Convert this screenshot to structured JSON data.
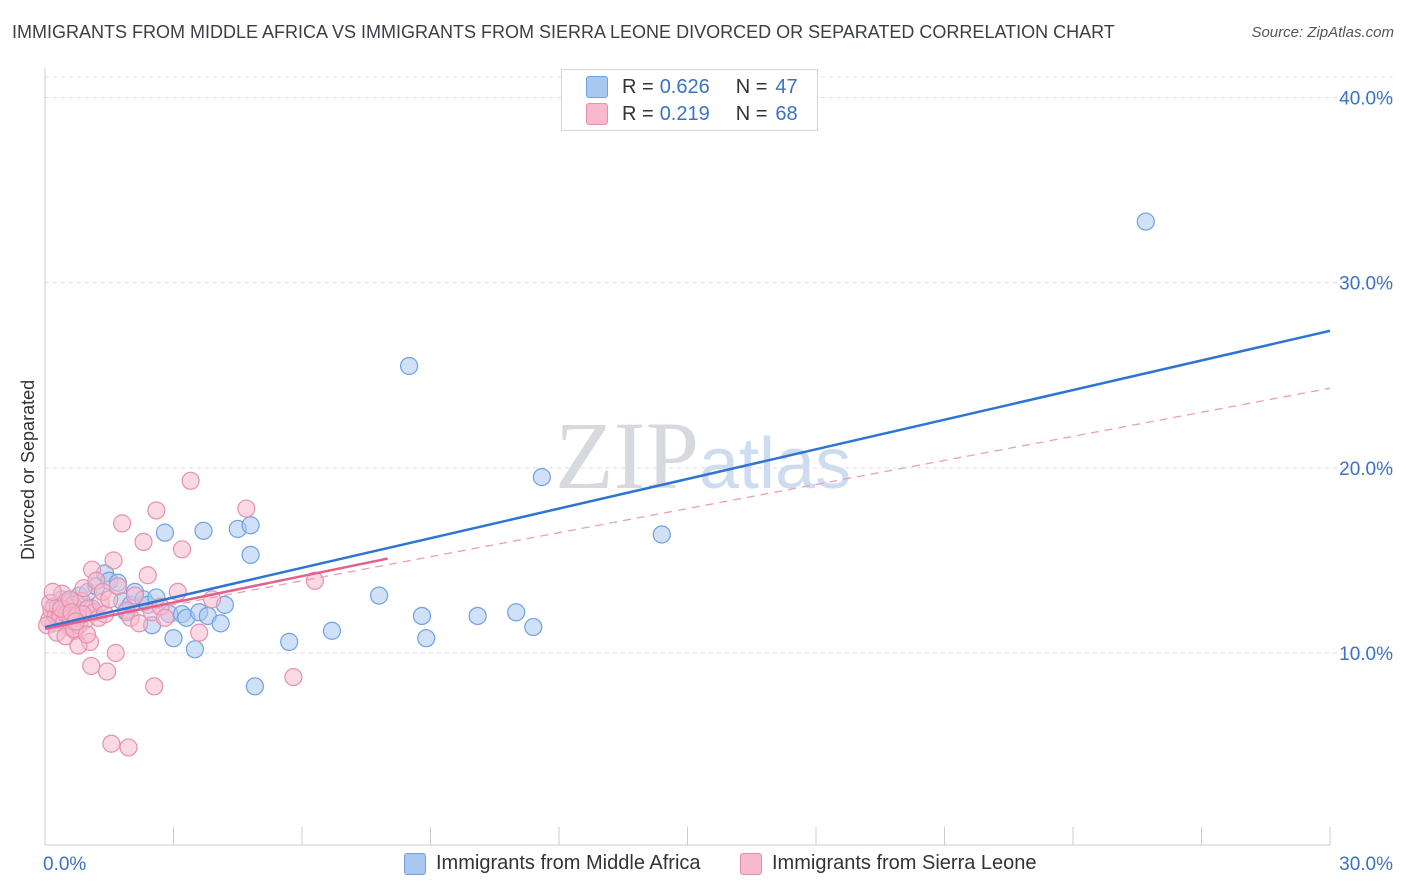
{
  "title": "IMMIGRANTS FROM MIDDLE AFRICA VS IMMIGRANTS FROM SIERRA LEONE DIVORCED OR SEPARATED CORRELATION CHART",
  "source": "Source: ZipAtlas.com",
  "watermark": {
    "zip": "ZIP",
    "atlas": "atlas"
  },
  "legend": {
    "r_label": "R =",
    "n_label": "N =",
    "rows": [
      {
        "r": "0.626",
        "n": "47",
        "color": "#a9c8f0"
      },
      {
        "r": "0.219",
        "n": "68",
        "color": "#f6b9cd"
      }
    ]
  },
  "chart_data": {
    "type": "scatter",
    "title": "IMMIGRANTS FROM MIDDLE AFRICA VS IMMIGRANTS FROM SIERRA LEONE DIVORCED OR SEPARATED CORRELATION CHART",
    "xlabel": "",
    "ylabel": "Divorced or Separated",
    "xlim": [
      0,
      30
    ],
    "ylim": [
      0,
      42
    ],
    "x_tick_labels": [
      {
        "value": 0,
        "label": "0.0%"
      },
      {
        "value": 30,
        "label": "30.0%"
      }
    ],
    "y_tick_labels": [
      {
        "value": 10,
        "label": "10.0%"
      },
      {
        "value": 20,
        "label": "20.0%"
      },
      {
        "value": 30,
        "label": "30.0%"
      },
      {
        "value": 40,
        "label": "40.0%"
      }
    ],
    "grid": "horizontal dashed",
    "legend_position": "top-center",
    "series": [
      {
        "name": "Immigrants from Middle Africa",
        "color": "#6fa1e4",
        "fill": "#a9c8f0",
        "trend": {
          "x": [
            0,
            30
          ],
          "y": [
            11.4,
            27.4
          ],
          "style": "solid",
          "color": "#2e74d2"
        },
        "points": [
          [
            0.2,
            12.5
          ],
          [
            0.4,
            12.9
          ],
          [
            0.5,
            12.2
          ],
          [
            0.6,
            12.8
          ],
          [
            0.8,
            13.1
          ],
          [
            1.0,
            13.3
          ],
          [
            1.1,
            12.4
          ],
          [
            1.2,
            13.6
          ],
          [
            1.4,
            14.3
          ],
          [
            1.5,
            13.9
          ],
          [
            1.7,
            13.8
          ],
          [
            1.8,
            12.8
          ],
          [
            1.9,
            12.2
          ],
          [
            2.0,
            12.6
          ],
          [
            2.1,
            13.3
          ],
          [
            2.3,
            12.9
          ],
          [
            2.4,
            12.6
          ],
          [
            2.5,
            11.5
          ],
          [
            2.6,
            13.0
          ],
          [
            2.8,
            16.5
          ],
          [
            2.9,
            12.1
          ],
          [
            3.0,
            10.8
          ],
          [
            3.2,
            12.1
          ],
          [
            3.3,
            11.9
          ],
          [
            3.5,
            10.2
          ],
          [
            3.6,
            12.2
          ],
          [
            3.7,
            16.6
          ],
          [
            3.8,
            12.0
          ],
          [
            4.1,
            11.6
          ],
          [
            4.2,
            12.6
          ],
          [
            4.5,
            16.7
          ],
          [
            4.8,
            15.3
          ],
          [
            4.8,
            16.9
          ],
          [
            4.9,
            8.2
          ],
          [
            5.7,
            10.6
          ],
          [
            6.7,
            11.2
          ],
          [
            7.8,
            13.1
          ],
          [
            8.5,
            25.5
          ],
          [
            8.8,
            12.0
          ],
          [
            8.9,
            10.8
          ],
          [
            10.1,
            12.0
          ],
          [
            11.0,
            12.2
          ],
          [
            11.4,
            11.4
          ],
          [
            11.6,
            19.5
          ],
          [
            14.4,
            16.4
          ],
          [
            25.7,
            33.3
          ],
          [
            0.3,
            11.8
          ]
        ]
      },
      {
        "name": "Immigrants from Sierra Leone",
        "color": "#e690ae",
        "fill": "#f6b9cd",
        "trend": {
          "x": [
            0,
            8
          ],
          "y": [
            11.3,
            15.1
          ],
          "style": "solid",
          "color": "#e0608f"
        },
        "trend_extended": {
          "x": [
            0,
            30
          ],
          "y": [
            11.3,
            24.3
          ],
          "style": "dashed",
          "color": "#e8a0b8"
        },
        "points": [
          [
            0.1,
            11.8
          ],
          [
            0.15,
            12.3
          ],
          [
            0.2,
            11.6
          ],
          [
            0.25,
            12.0
          ],
          [
            0.3,
            12.5
          ],
          [
            0.35,
            11.9
          ],
          [
            0.4,
            13.2
          ],
          [
            0.45,
            11.7
          ],
          [
            0.5,
            12.1
          ],
          [
            0.55,
            11.4
          ],
          [
            0.6,
            11.9
          ],
          [
            0.65,
            12.6
          ],
          [
            0.7,
            11.2
          ],
          [
            0.75,
            12.0
          ],
          [
            0.8,
            11.5
          ],
          [
            0.85,
            12.8
          ],
          [
            0.9,
            13.5
          ],
          [
            0.95,
            11.8
          ],
          [
            1.0,
            12.4
          ],
          [
            1.05,
            10.6
          ],
          [
            1.1,
            14.5
          ],
          [
            1.15,
            12.2
          ],
          [
            1.2,
            13.9
          ],
          [
            1.25,
            11.9
          ],
          [
            1.3,
            12.7
          ],
          [
            1.35,
            13.3
          ],
          [
            1.4,
            12.1
          ],
          [
            1.45,
            9.0
          ],
          [
            1.5,
            12.9
          ],
          [
            1.6,
            15.0
          ],
          [
            1.65,
            10.0
          ],
          [
            1.7,
            13.6
          ],
          [
            1.8,
            17.0
          ],
          [
            1.9,
            12.3
          ],
          [
            2.0,
            11.9
          ],
          [
            2.1,
            13.1
          ],
          [
            2.2,
            11.6
          ],
          [
            2.3,
            16.0
          ],
          [
            2.4,
            14.2
          ],
          [
            2.5,
            12.2
          ],
          [
            2.6,
            17.7
          ],
          [
            2.7,
            12.5
          ],
          [
            2.8,
            11.9
          ],
          [
            3.1,
            13.3
          ],
          [
            3.2,
            15.6
          ],
          [
            3.4,
            19.3
          ],
          [
            3.6,
            11.1
          ],
          [
            3.9,
            12.9
          ],
          [
            4.7,
            17.8
          ],
          [
            5.8,
            8.7
          ],
          [
            6.3,
            13.9
          ],
          [
            1.55,
            5.1
          ],
          [
            1.95,
            4.9
          ],
          [
            2.55,
            8.2
          ],
          [
            0.05,
            11.5
          ],
          [
            0.12,
            12.7
          ],
          [
            0.18,
            13.3
          ],
          [
            0.28,
            11.1
          ],
          [
            0.38,
            12.4
          ],
          [
            0.48,
            10.9
          ],
          [
            0.58,
            12.9
          ],
          [
            0.68,
            11.3
          ],
          [
            0.78,
            10.4
          ],
          [
            0.88,
            12.1
          ],
          [
            0.98,
            11.0
          ],
          [
            1.08,
            9.3
          ],
          [
            0.62,
            12.2
          ],
          [
            0.72,
            11.7
          ]
        ]
      }
    ]
  },
  "bottom_legend": [
    {
      "label": "Immigrants from Middle Africa",
      "color": "#a9c8f0",
      "border": "#6fa1e4"
    },
    {
      "label": "Immigrants from Sierra Leone",
      "color": "#f6b9cd",
      "border": "#e690ae"
    }
  ]
}
